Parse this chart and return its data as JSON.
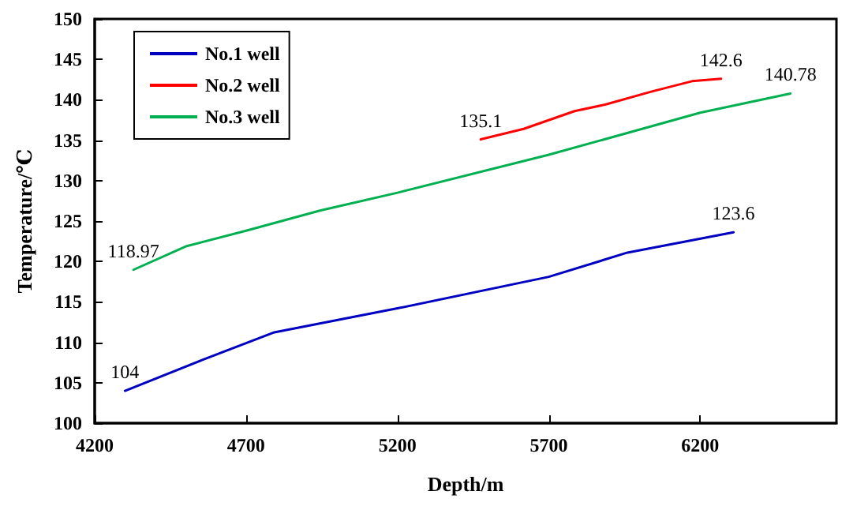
{
  "chart_data": {
    "type": "line",
    "xlabel": "Depth/m",
    "ylabel": "Temperature/℃",
    "xlim": [
      4200,
      6650
    ],
    "xticks": [
      4200,
      4700,
      5200,
      5700,
      6200
    ],
    "ylim": [
      100,
      150
    ],
    "yticks": [
      100,
      105,
      110,
      115,
      120,
      125,
      130,
      135,
      140,
      145,
      150
    ],
    "grid": false,
    "legend": "top left",
    "marker": "none",
    "line_style": "solid",
    "series": [
      {
        "name": "No.1 well",
        "color": "#0000c0",
        "x": [
          4300,
          4554,
          4790,
          5200,
          5700,
          5960,
          6310
        ],
        "values": [
          104,
          107.8,
          111.2,
          114.2,
          118.1,
          121.1,
          123.6
        ],
        "value_labels": [
          "104",
          null,
          null,
          null,
          null,
          null,
          "123.6"
        ]
      },
      {
        "name": "No.2 well",
        "color": "#ff0000",
        "x": [
          5475,
          5617,
          5785,
          5886,
          6038,
          6173,
          6269
        ],
        "values": [
          135.1,
          136.4,
          138.6,
          139.4,
          141,
          142.3,
          142.6
        ],
        "value_labels": [
          "135.1",
          null,
          null,
          null,
          null,
          null,
          "142.6"
        ]
      },
      {
        "name": "No.3 well",
        "color": "#00b050",
        "x": [
          4328,
          4504,
          4700,
          4944,
          5200,
          5700,
          6200,
          6498
        ],
        "values": [
          118.97,
          121.9,
          123.8,
          126.3,
          128.5,
          133.2,
          138.4,
          140.78
        ],
        "value_labels": [
          "118.97",
          null,
          null,
          null,
          null,
          null,
          null,
          "140.78"
        ]
      }
    ]
  }
}
